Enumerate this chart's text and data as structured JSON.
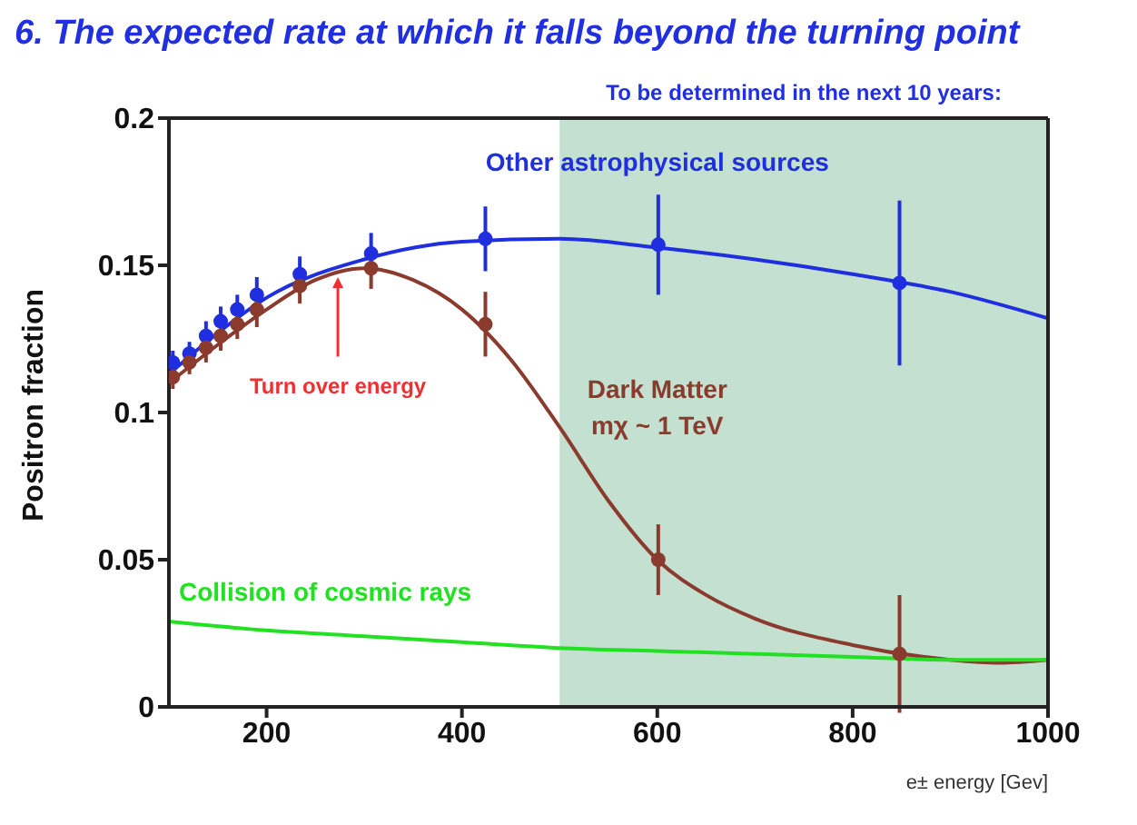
{
  "chart_data": {
    "type": "line",
    "title": "6. The expected rate at which it falls beyond the turning point",
    "xlabel": "e± energy [Gev]",
    "ylabel": "Positron fraction",
    "xlim": [
      100,
      1000
    ],
    "xticks": [
      200,
      400,
      600,
      800,
      1000
    ],
    "ylim": [
      0,
      0.2
    ],
    "yticks": [
      0,
      0.05,
      0.1,
      0.15,
      0.2
    ],
    "grid": false,
    "legend": false,
    "series": [
      {
        "name": "Other astrophysical sources",
        "color": "#1f2fe0",
        "x": [
          100,
          150,
          200,
          300,
          400,
          500,
          600,
          700,
          800,
          900,
          1000
        ],
        "values": [
          0.113,
          0.127,
          0.139,
          0.152,
          0.158,
          0.159,
          0.156,
          0.152,
          0.147,
          0.141,
          0.132
        ]
      },
      {
        "name": "Dark Matter mχ ~ 1 TeV",
        "color": "#8b3a2e",
        "x": [
          100,
          150,
          200,
          250,
          300,
          350,
          400,
          450,
          500,
          550,
          600,
          650,
          700,
          800,
          900,
          950,
          1000
        ],
        "values": [
          0.11,
          0.123,
          0.135,
          0.145,
          0.149,
          0.145,
          0.135,
          0.118,
          0.095,
          0.07,
          0.05,
          0.038,
          0.03,
          0.021,
          0.016,
          0.015,
          0.016
        ]
      },
      {
        "name": "Collision of cosmic rays",
        "color": "#22e022",
        "x": [
          100,
          200,
          300,
          400,
          500,
          600,
          700,
          800,
          900,
          1000
        ],
        "values": [
          0.029,
          0.026,
          0.024,
          0.022,
          0.02,
          0.019,
          0.018,
          0.017,
          0.016,
          0.016
        ]
      },
      {
        "color": "#1f2fe0",
        "type": "scatter",
        "x": [
          104,
          121,
          138,
          153,
          170,
          190,
          234,
          307,
          424,
          601,
          848
        ],
        "values": [
          0.117,
          0.12,
          0.126,
          0.131,
          0.135,
          0.14,
          0.147,
          0.154,
          0.159,
          0.157,
          0.144
        ],
        "errors": [
          0.004,
          0.004,
          0.005,
          0.005,
          0.005,
          0.006,
          0.006,
          0.007,
          0.011,
          0.017,
          0.028
        ]
      },
      {
        "color": "#8b3a2e",
        "type": "scatter",
        "x": [
          104,
          121,
          138,
          153,
          170,
          190,
          234,
          307,
          424,
          601,
          848
        ],
        "values": [
          0.112,
          0.117,
          0.122,
          0.126,
          0.13,
          0.135,
          0.143,
          0.149,
          0.13,
          0.05,
          0.018
        ],
        "errors": [
          0.004,
          0.004,
          0.005,
          0.005,
          0.005,
          0.006,
          0.006,
          0.007,
          0.011,
          0.012,
          0.02
        ]
      }
    ],
    "bands": [
      {
        "axis": "x",
        "from": 500,
        "to": 1000,
        "label": "To be determined in the next 10 years:",
        "color": "#c3e0d0"
      }
    ],
    "annotations": [
      {
        "text": "Turn over energy",
        "x": 273,
        "y": 0.149
      }
    ]
  }
}
